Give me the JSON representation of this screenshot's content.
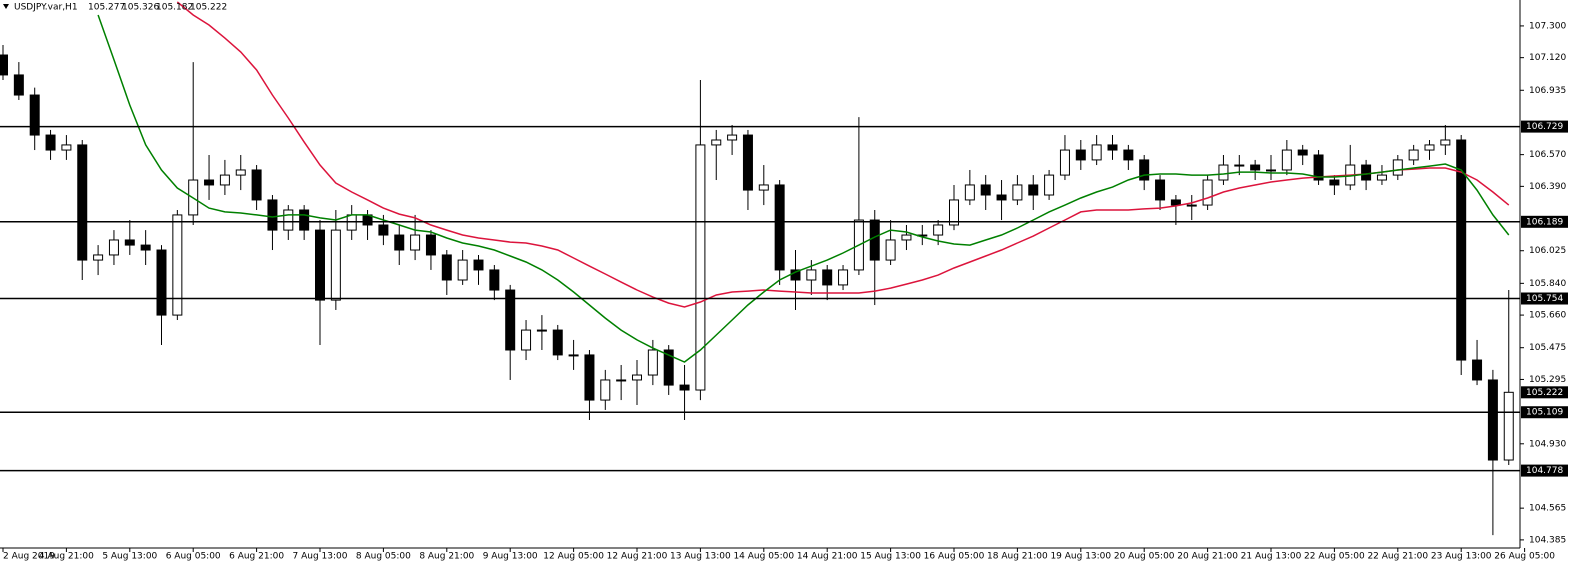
{
  "chart_data": {
    "type": "candlestick",
    "symbol": "USDJPY.var,H1",
    "header_ohlc": [
      105.277,
      105.326,
      105.182,
      105.222
    ],
    "open": [
      107.135,
      107.022,
      106.908,
      106.681,
      106.596,
      106.625,
      105.972,
      106.001,
      106.086,
      106.057,
      106.029,
      105.66,
      106.228,
      106.426,
      106.398,
      106.454,
      106.483,
      106.313,
      106.142,
      106.256,
      106.142,
      105.745,
      106.142,
      106.228,
      106.171,
      106.114,
      106.029,
      106.114,
      106.001,
      105.859,
      105.972,
      105.916,
      105.802,
      105.462,
      105.575,
      105.575,
      105.434,
      105.434,
      105.178,
      105.292,
      105.292,
      105.32,
      105.462,
      105.263,
      105.235,
      106.625,
      106.653,
      106.681,
      106.369,
      106.398,
      105.916,
      105.859,
      105.916,
      105.831,
      105.916,
      106.199,
      105.972,
      106.086,
      106.114,
      106.114,
      106.171,
      106.313,
      106.398,
      106.341,
      106.313,
      106.398,
      106.341,
      106.454,
      106.596,
      106.54,
      106.625,
      106.596,
      106.54,
      106.426,
      106.313,
      106.284,
      106.284,
      106.426,
      106.511,
      106.511,
      106.483,
      106.483,
      106.596,
      106.568,
      106.426,
      106.398,
      106.511,
      106.426,
      106.454,
      106.54,
      106.596,
      106.625,
      106.653,
      105.405,
      105.292,
      104.838
    ],
    "high": [
      107.192,
      107.095,
      106.95,
      106.71,
      106.681,
      106.653,
      106.057,
      106.142,
      106.199,
      106.142,
      106.057,
      106.256,
      107.095,
      106.568,
      106.54,
      106.568,
      106.511,
      106.341,
      106.284,
      106.284,
      106.199,
      106.256,
      106.284,
      106.256,
      106.228,
      106.171,
      106.228,
      106.142,
      106.029,
      106.029,
      106.001,
      105.944,
      105.831,
      105.632,
      105.66,
      105.604,
      105.519,
      105.462,
      105.349,
      105.377,
      105.405,
      105.519,
      105.49,
      105.377,
      106.993,
      106.71,
      106.738,
      106.71,
      106.511,
      106.426,
      106.029,
      105.972,
      105.944,
      105.944,
      106.783,
      106.256,
      106.199,
      106.171,
      106.171,
      106.199,
      106.398,
      106.483,
      106.454,
      106.426,
      106.454,
      106.454,
      106.483,
      106.681,
      106.653,
      106.681,
      106.681,
      106.625,
      106.568,
      106.454,
      106.341,
      106.341,
      106.454,
      106.568,
      106.568,
      106.54,
      106.568,
      106.653,
      106.625,
      106.596,
      106.454,
      106.625,
      106.54,
      106.511,
      106.568,
      106.625,
      106.653,
      106.738,
      106.681,
      105.519,
      105.349,
      105.802
    ],
    "low": [
      106.993,
      106.88,
      106.596,
      106.54,
      106.54,
      105.859,
      105.887,
      105.944,
      106.001,
      105.944,
      105.49,
      105.632,
      106.171,
      106.313,
      106.341,
      106.369,
      106.256,
      106.029,
      106.086,
      106.086,
      105.49,
      105.689,
      106.086,
      106.086,
      106.057,
      105.944,
      105.972,
      105.916,
      105.774,
      105.831,
      105.831,
      105.745,
      105.292,
      105.405,
      105.462,
      105.405,
      105.349,
      105.065,
      105.122,
      105.178,
      105.15,
      105.263,
      105.207,
      105.065,
      105.178,
      106.426,
      106.568,
      106.256,
      106.284,
      105.831,
      105.689,
      105.774,
      105.745,
      105.802,
      105.887,
      105.717,
      105.944,
      106.029,
      106.057,
      106.057,
      106.142,
      106.284,
      106.256,
      106.199,
      106.284,
      106.256,
      106.313,
      106.426,
      106.483,
      106.511,
      106.54,
      106.483,
      106.369,
      106.256,
      106.171,
      106.199,
      106.256,
      106.398,
      106.454,
      106.426,
      106.426,
      106.454,
      106.511,
      106.398,
      106.341,
      106.369,
      106.369,
      106.398,
      106.426,
      106.511,
      106.54,
      106.568,
      105.32,
      105.263,
      104.412,
      104.81
    ],
    "close": [
      107.022,
      106.908,
      106.681,
      106.596,
      106.625,
      105.972,
      106.001,
      106.086,
      106.057,
      106.029,
      105.66,
      106.228,
      106.426,
      106.398,
      106.454,
      106.483,
      106.313,
      106.142,
      106.256,
      106.142,
      105.745,
      106.142,
      106.228,
      106.171,
      106.114,
      106.029,
      106.114,
      106.001,
      105.859,
      105.972,
      105.916,
      105.802,
      105.462,
      105.575,
      105.575,
      105.434,
      105.434,
      105.178,
      105.292,
      105.292,
      105.32,
      105.462,
      105.263,
      105.235,
      106.625,
      106.653,
      106.681,
      106.369,
      106.398,
      105.916,
      105.859,
      105.916,
      105.831,
      105.916,
      106.199,
      105.972,
      106.086,
      106.114,
      106.114,
      106.171,
      106.313,
      106.398,
      106.341,
      106.313,
      106.398,
      106.341,
      106.454,
      106.596,
      106.54,
      106.625,
      106.596,
      106.54,
      106.426,
      106.313,
      106.284,
      106.284,
      106.426,
      106.511,
      106.511,
      106.483,
      106.483,
      106.596,
      106.568,
      106.426,
      106.398,
      106.511,
      106.426,
      106.454,
      106.54,
      106.596,
      106.625,
      106.653,
      105.405,
      105.292,
      104.838,
      105.222
    ],
    "up_color": "#ffffff",
    "down_color": "#000000",
    "overlays": [
      {
        "color": "#dc143c",
        "values": [
          null,
          null,
          null,
          null,
          null,
          null,
          null,
          null,
          null,
          null,
          null,
          107.436,
          107.362,
          107.305,
          107.231,
          107.152,
          107.05,
          106.908,
          106.778,
          106.642,
          106.511,
          106.409,
          106.358,
          106.313,
          106.267,
          106.233,
          106.211,
          106.171,
          106.142,
          106.114,
          106.097,
          106.086,
          106.074,
          106.069,
          106.052,
          106.029,
          105.984,
          105.938,
          105.893,
          105.847,
          105.802,
          105.762,
          105.728,
          105.706,
          105.734,
          105.774,
          105.791,
          105.796,
          105.802,
          105.796,
          105.791,
          105.785,
          105.785,
          105.785,
          105.785,
          105.796,
          105.813,
          105.836,
          105.859,
          105.887,
          105.927,
          105.961,
          105.995,
          106.029,
          106.069,
          106.108,
          106.154,
          106.199,
          106.245,
          106.256,
          106.256,
          106.256,
          106.262,
          106.267,
          106.279,
          106.296,
          106.324,
          106.358,
          106.381,
          106.398,
          106.415,
          106.426,
          106.437,
          106.443,
          106.449,
          106.454,
          106.46,
          106.471,
          106.483,
          106.488,
          106.494,
          106.494,
          106.471,
          106.426,
          106.358,
          106.284
        ]
      },
      {
        "color": "#008000",
        "values": [
          null,
          null,
          null,
          null,
          null,
          null,
          107.362,
          107.107,
          106.851,
          106.625,
          106.483,
          106.381,
          106.324,
          106.267,
          106.245,
          106.239,
          106.228,
          106.216,
          106.228,
          106.228,
          106.211,
          106.199,
          106.228,
          106.228,
          106.199,
          106.171,
          106.142,
          106.131,
          106.097,
          106.069,
          106.052,
          106.029,
          105.995,
          105.961,
          105.916,
          105.859,
          105.791,
          105.717,
          105.643,
          105.575,
          105.519,
          105.473,
          105.433,
          105.394,
          105.462,
          105.547,
          105.632,
          105.717,
          105.791,
          105.859,
          105.904,
          105.938,
          105.972,
          106.012,
          106.057,
          106.103,
          106.142,
          106.131,
          106.103,
          106.08,
          106.063,
          106.057,
          106.086,
          106.114,
          106.154,
          106.199,
          106.245,
          106.284,
          106.324,
          106.358,
          106.386,
          106.426,
          106.454,
          106.46,
          106.46,
          106.454,
          106.454,
          106.46,
          106.471,
          106.471,
          106.466,
          106.466,
          106.46,
          106.443,
          106.443,
          106.449,
          106.46,
          106.471,
          106.483,
          106.494,
          106.505,
          106.517,
          106.483,
          106.369,
          106.228,
          106.114
        ]
      }
    ],
    "levels": [
      106.729,
      106.189,
      105.754,
      105.109,
      104.778
    ],
    "last_price": 105.222,
    "ylim": [
      104.339,
      107.447
    ],
    "yticks": [
      {
        "value": 107.3,
        "label": "107.300"
      },
      {
        "value": 107.12,
        "label": "107.120"
      },
      106.935,
      {
        "value": 106.57,
        "label": "106.570"
      },
      {
        "value": 106.39,
        "label": "106.390"
      },
      106.025,
      {
        "value": 105.84,
        "label": "105.840"
      },
      {
        "value": 105.66,
        "label": "105.660"
      },
      105.475,
      105.295,
      {
        "value": 104.93,
        "label": "104.930"
      },
      104.565,
      104.385
    ],
    "xticks": [
      {
        "value": 0,
        "label": "2 Aug 2019"
      },
      {
        "value": 4,
        "label": "4 Aug 21:00"
      },
      {
        "value": 8,
        "label": "5 Aug 13:00"
      },
      {
        "value": 12,
        "label": "6 Aug 05:00"
      },
      {
        "value": 16,
        "label": "6 Aug 21:00"
      },
      {
        "value": 20,
        "label": "7 Aug 13:00"
      },
      {
        "value": 24,
        "label": "8 Aug 05:00"
      },
      {
        "value": 28,
        "label": "8 Aug 21:00"
      },
      {
        "value": 32,
        "label": "9 Aug 13:00"
      },
      {
        "value": 36,
        "label": "12 Aug 05:00"
      },
      {
        "value": 40,
        "label": "12 Aug 21:00"
      },
      {
        "value": 44,
        "label": "13 Aug 13:00"
      },
      {
        "value": 48,
        "label": "14 Aug 05:00"
      },
      {
        "value": 52,
        "label": "14 Aug 21:00"
      },
      {
        "value": 56,
        "label": "15 Aug 13:00"
      },
      {
        "value": 60,
        "label": "16 Aug 05:00"
      },
      {
        "value": 64,
        "label": "18 Aug 21:00"
      },
      {
        "value": 68,
        "label": "19 Aug 13:00"
      },
      {
        "value": 72,
        "label": "20 Aug 05:00"
      },
      {
        "value": 76,
        "label": "20 Aug 21:00"
      },
      {
        "value": 80,
        "label": "21 Aug 13:00"
      },
      {
        "value": 84,
        "label": "22 Aug 05:00"
      },
      {
        "value": 88,
        "label": "22 Aug 21:00"
      },
      {
        "value": 92,
        "label": "23 Aug 13:00"
      },
      {
        "value": 96,
        "label": "26 Aug 05:00"
      }
    ]
  }
}
